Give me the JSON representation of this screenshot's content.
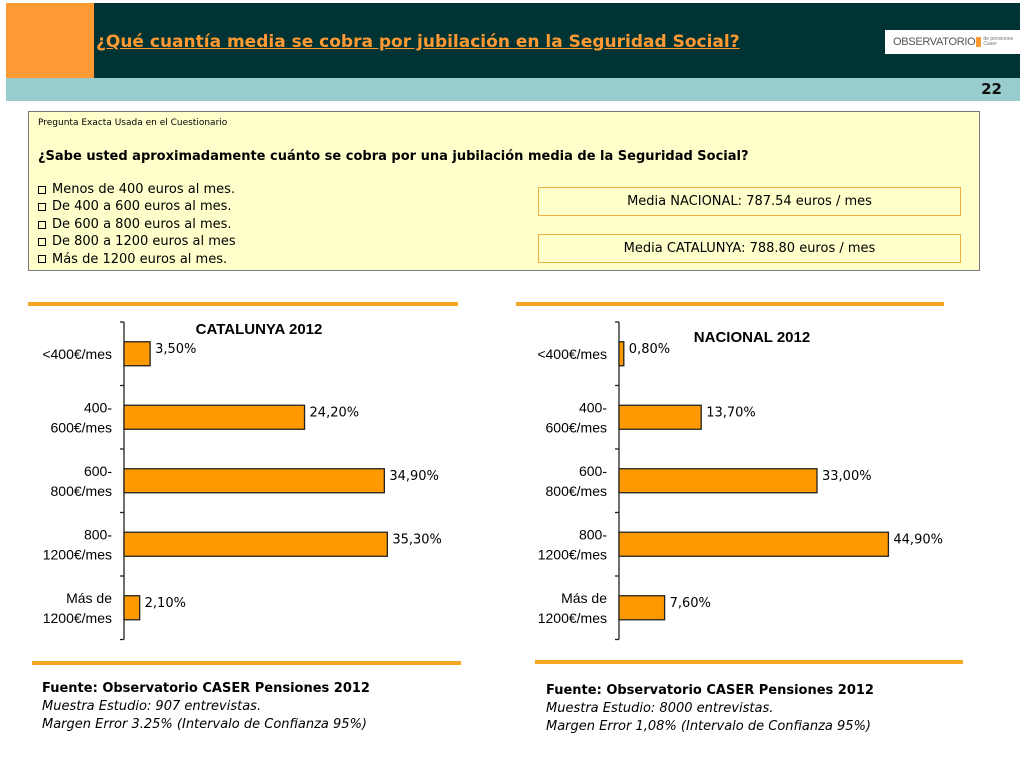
{
  "header": {
    "title": "¿Qué cuantía media se cobra por jubilación en la Seguridad Social?",
    "page_number": "22",
    "logo": {
      "word": "OBSERVATORIO",
      "sub1": "de pensiones",
      "sub2": "Caser"
    }
  },
  "question": {
    "label": "Pregunta Exacta Usada en el Cuestionario",
    "text": "¿Sabe usted aproximadamente cuánto se cobra por una jubilación media de la Seguridad Social?",
    "options": [
      "Menos de 400 euros al mes.",
      "De 400 a 600 euros al mes.",
      "De 600 a 800 euros al mes.",
      "De 800 a 1200 euros al mes",
      "Más de 1200 euros al mes."
    ],
    "means": {
      "nacional": "Media NACIONAL: 787.54 euros / mes",
      "catalunya": "Media CATALUNYA: 788.80 euros / mes"
    }
  },
  "colors": {
    "accent": "#ff9933",
    "dark": "#003333",
    "band": "#99cccc",
    "bar": "#ff9900",
    "box": "#ffffcc",
    "rule": "#f5a623"
  },
  "chart_data": [
    {
      "type": "bar",
      "orientation": "horizontal",
      "title": "CATALUNYA 2012",
      "categories": [
        [
          "<400€/mes"
        ],
        [
          "400-",
          "600€/mes"
        ],
        [
          "600-",
          "800€/mes"
        ],
        [
          "800-",
          "1200€/mes"
        ],
        [
          "Más de",
          "1200€/mes"
        ]
      ],
      "values": [
        3.5,
        24.2,
        34.9,
        35.3,
        2.1
      ],
      "labels": [
        "3,50%",
        "24,20%",
        "34,90%",
        "35,30%",
        "2,10%"
      ],
      "xlim": [
        0,
        45
      ],
      "grid": false
    },
    {
      "type": "bar",
      "orientation": "horizontal",
      "title": "NACIONAL 2012",
      "categories": [
        [
          "<400€/mes"
        ],
        [
          "400-",
          "600€/mes"
        ],
        [
          "600-",
          "800€/mes"
        ],
        [
          "800-",
          "1200€/mes"
        ],
        [
          "Más de",
          "1200€/mes"
        ]
      ],
      "values": [
        0.8,
        13.7,
        33.0,
        44.9,
        7.6
      ],
      "labels": [
        "0,80%",
        "13,70%",
        "33,00%",
        "44,90%",
        "7,60%"
      ],
      "xlim": [
        0,
        50
      ],
      "grid": false
    }
  ],
  "sources": [
    {
      "fuente": "Fuente: Observatorio CASER Pensiones 2012",
      "muestra": "Muestra Estudio: 907 entrevistas.",
      "margen": "Margen Error 3.25% (Intervalo de Confianza 95%)"
    },
    {
      "fuente": "Fuente: Observatorio CASER Pensiones 2012",
      "muestra": "Muestra Estudio: 8000 entrevistas.",
      "margen": "Margen Error 1,08% (Intervalo de Confianza 95%)"
    }
  ]
}
